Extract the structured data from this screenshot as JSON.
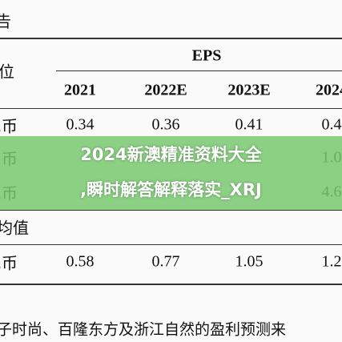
{
  "header": {
    "title": "告"
  },
  "table": {
    "row_header": "位",
    "group_header": "EPS",
    "columns": [
      "2021",
      "2022E",
      "2023E",
      "2024"
    ],
    "rows": [
      {
        "label": "民币",
        "cells": [
          "0.34",
          "0.36",
          "0.41",
          "0.4"
        ]
      },
      {
        "label": "民币",
        "cells": [
          null,
          null,
          null,
          "1.0"
        ]
      },
      {
        "label": "民币",
        "cells": [
          null,
          null,
          null,
          "4.6"
        ]
      },
      {
        "label": "均值",
        "cells": [
          null,
          null,
          null,
          null
        ]
      },
      {
        "label": "民币",
        "cells": [
          "0.58",
          "0.77",
          "1.05",
          "1.2"
        ]
      }
    ]
  },
  "banner": {
    "lines": [
      "2024新澳精准资料大全",
      ",瞬时解答解释落实_XRJ"
    ]
  },
  "footer": {
    "text": "子时尚、百隆东方及浙江自然的盈利预测来"
  }
}
